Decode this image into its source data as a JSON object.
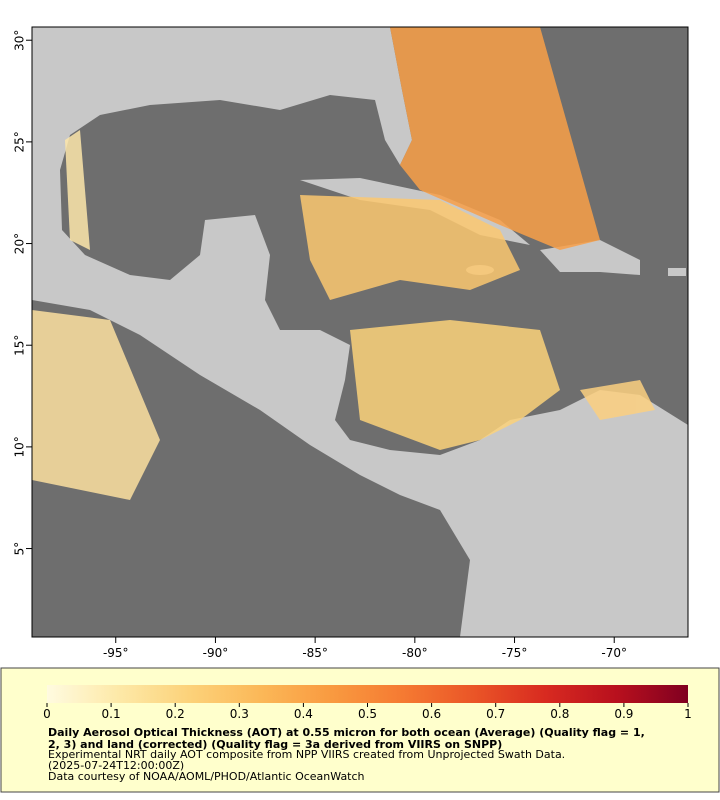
{
  "map": {
    "lonlim": [
      -99.2,
      -66.3
    ],
    "latlim": [
      0.65,
      30.65
    ],
    "xticks": [
      {
        "value": -95,
        "label": "-95°"
      },
      {
        "value": -90,
        "label": "-90°"
      },
      {
        "value": -85,
        "label": "-85°"
      },
      {
        "value": -80,
        "label": "-80°"
      },
      {
        "value": -75,
        "label": "-75°"
      },
      {
        "value": -70,
        "label": "-70°"
      }
    ],
    "yticks": [
      {
        "value": 5,
        "label": "5°"
      },
      {
        "value": 10,
        "label": "10°"
      },
      {
        "value": 15,
        "label": "15°"
      },
      {
        "value": 20,
        "label": "20°"
      },
      {
        "value": 25,
        "label": "25°"
      },
      {
        "value": 30,
        "label": "30°"
      }
    ]
  },
  "colorbar": {
    "lim": [
      0,
      1
    ],
    "ticks": [
      0,
      0.1,
      0.2,
      0.3,
      0.4,
      0.5,
      0.6,
      0.7,
      0.8,
      0.9,
      1
    ],
    "colors": [
      "#fffbe0",
      "#fde9a8",
      "#fcd27a",
      "#fbb858",
      "#f99a40",
      "#f57a32",
      "#ea5527",
      "#d82a20",
      "#b8101e",
      "#800020"
    ]
  },
  "caption": {
    "title_lines": [
      "Daily Aerosol Optical Thickness (AOT) at 0.55 micron for both ocean (Average) (Quality flag = 1,",
      "2, 3) and land (corrected) (Quality flag = 3a derived from VIIRS on SNPP)"
    ],
    "lines": [
      "Experimental NRT daily AOT composite from NPP VIIRS created from Unprojected Swath Data.",
      "(2025-07-24T12:00:00Z)",
      "Data courtesy of NOAA/AOML/PHOD/Atlantic OceanWatch"
    ]
  }
}
